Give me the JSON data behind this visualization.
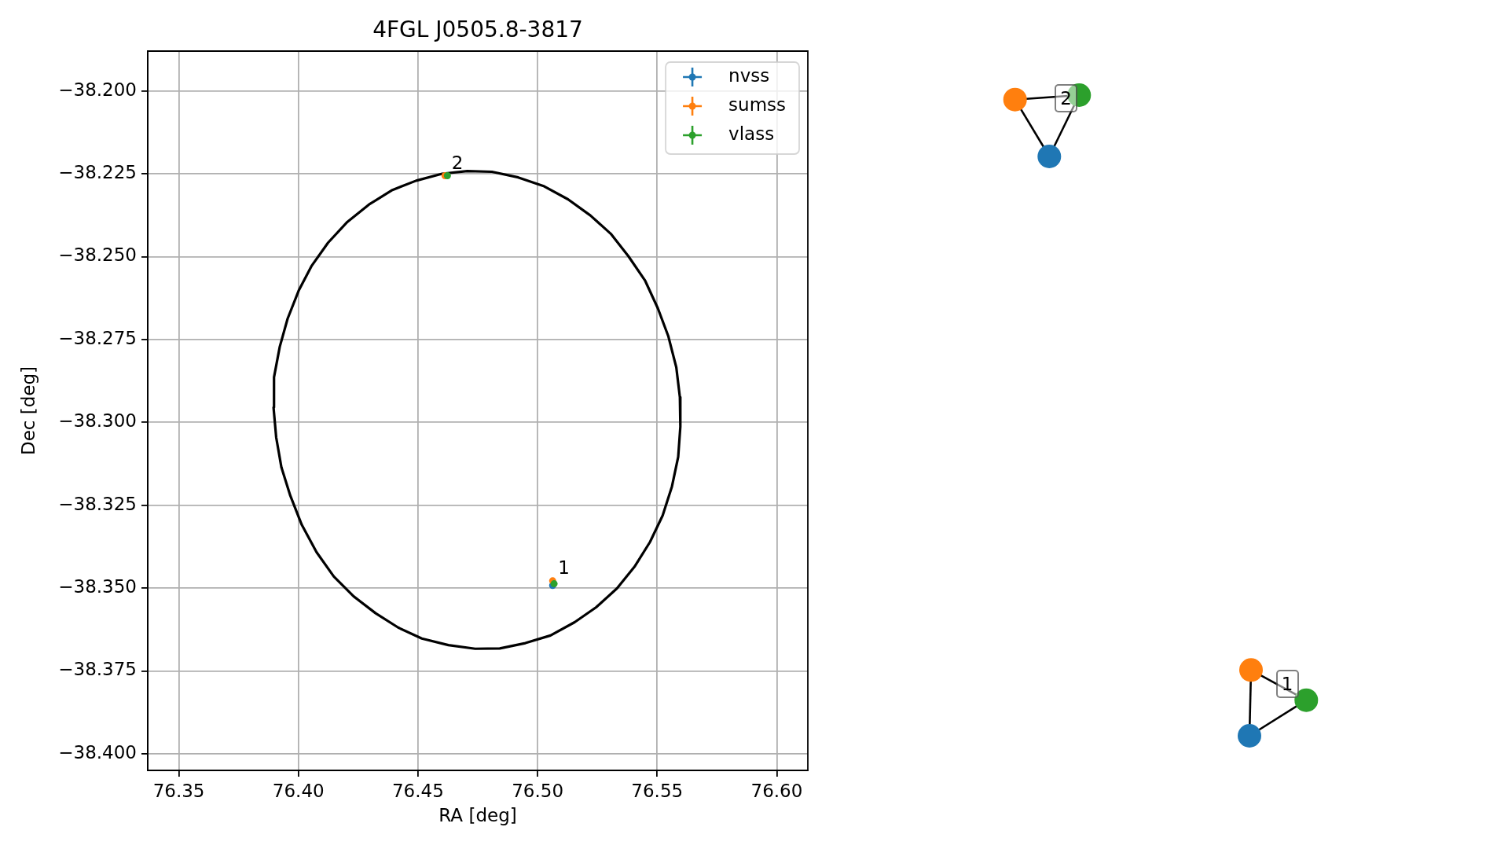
{
  "chart_data": [
    {
      "type": "scatter",
      "title": "4FGL J0505.8-3817",
      "xlabel": "RA [deg]",
      "ylabel": "Dec [deg]",
      "xlim": [
        76.337,
        76.613
      ],
      "xticks": [
        {
          "value": 76.35,
          "label": "76.35"
        },
        {
          "value": 76.4,
          "label": "76.40"
        },
        {
          "value": 76.45,
          "label": "76.45"
        },
        {
          "value": 76.5,
          "label": "76.50"
        },
        {
          "value": 76.55,
          "label": "76.55"
        },
        {
          "value": 76.6,
          "label": "76.60"
        }
      ],
      "ylim": [
        -38.405,
        -38.188
      ],
      "yticks": [
        {
          "value": -38.4,
          "label": "−38.400"
        },
        {
          "value": -38.375,
          "label": "−38.375"
        },
        {
          "value": -38.35,
          "label": "−38.350"
        },
        {
          "value": -38.325,
          "label": "−38.325"
        },
        {
          "value": -38.3,
          "label": "−38.300"
        },
        {
          "value": -38.275,
          "label": "−38.275"
        },
        {
          "value": -38.25,
          "label": "−38.250"
        },
        {
          "value": -38.225,
          "label": "−38.225"
        },
        {
          "value": -38.2,
          "label": "−38.200"
        }
      ],
      "grid": true,
      "legend": "top right",
      "marker": "circle",
      "series": [
        {
          "type": "line",
          "marker": "none",
          "color": "#000000",
          "x": [
            76.3896,
            76.3898,
            76.3922,
            76.3955,
            76.4001,
            76.4056,
            76.4124,
            76.4205,
            76.4295,
            76.4393,
            76.4492,
            76.4601,
            76.4706,
            76.4809,
            76.4919,
            76.5028,
            76.5127,
            76.5221,
            76.5306,
            76.538,
            76.545,
            76.5503,
            76.5547,
            76.558,
            76.5595,
            76.5597,
            null,
            76.3896,
            76.3907,
            76.3929,
            76.3966,
            76.4014,
            76.4076,
            76.4148,
            76.4231,
            76.4323,
            76.4417,
            76.4516,
            76.4627,
            76.4739,
            76.4842,
            76.4949,
            76.5054,
            76.5155,
            76.5245,
            76.5332,
            76.5405,
            76.547,
            76.5523,
            76.5562,
            76.5588,
            76.5597
          ],
          "values": [
            -38.2955,
            -38.2864,
            -38.2772,
            -38.2687,
            -38.2603,
            -38.2527,
            -38.2458,
            -38.2395,
            -38.2343,
            -38.2299,
            -38.2271,
            -38.225,
            -38.2242,
            -38.2244,
            -38.2261,
            -38.2288,
            -38.2327,
            -38.2376,
            -38.2431,
            -38.2499,
            -38.2573,
            -38.2656,
            -38.2741,
            -38.2834,
            -38.2924,
            -38.3013,
            null,
            -38.2955,
            -38.3045,
            -38.3136,
            -38.3221,
            -38.3309,
            -38.3392,
            -38.3465,
            -38.3525,
            -38.3576,
            -38.3619,
            -38.3652,
            -38.3672,
            -38.3683,
            -38.3682,
            -38.3666,
            -38.3643,
            -38.3603,
            -38.3558,
            -38.3501,
            -38.3436,
            -38.3361,
            -38.3281,
            -38.3193,
            -38.3104,
            -38.3013
          ]
        },
        {
          "name": "nvss",
          "color": "#1f77b4",
          "x": [
            76.5063
          ],
          "values": [
            -38.3492
          ]
        },
        {
          "name": "sumss",
          "color": "#ff7f0e",
          "x": [
            76.5063,
            76.4613
          ],
          "values": [
            -38.3478,
            -38.2256
          ]
        },
        {
          "name": "vlass",
          "color": "#2ca02c",
          "x": [
            76.5069,
            76.4623
          ],
          "values": [
            -38.3487,
            -38.2256
          ]
        }
      ],
      "annotations": [
        {
          "text": "1",
          "x": 76.5063,
          "y": -38.3478
        },
        {
          "text": "2",
          "x": 76.4618,
          "y": -38.2256
        }
      ]
    },
    {
      "type": "other",
      "annotations": [
        "2",
        "1"
      ]
    }
  ]
}
